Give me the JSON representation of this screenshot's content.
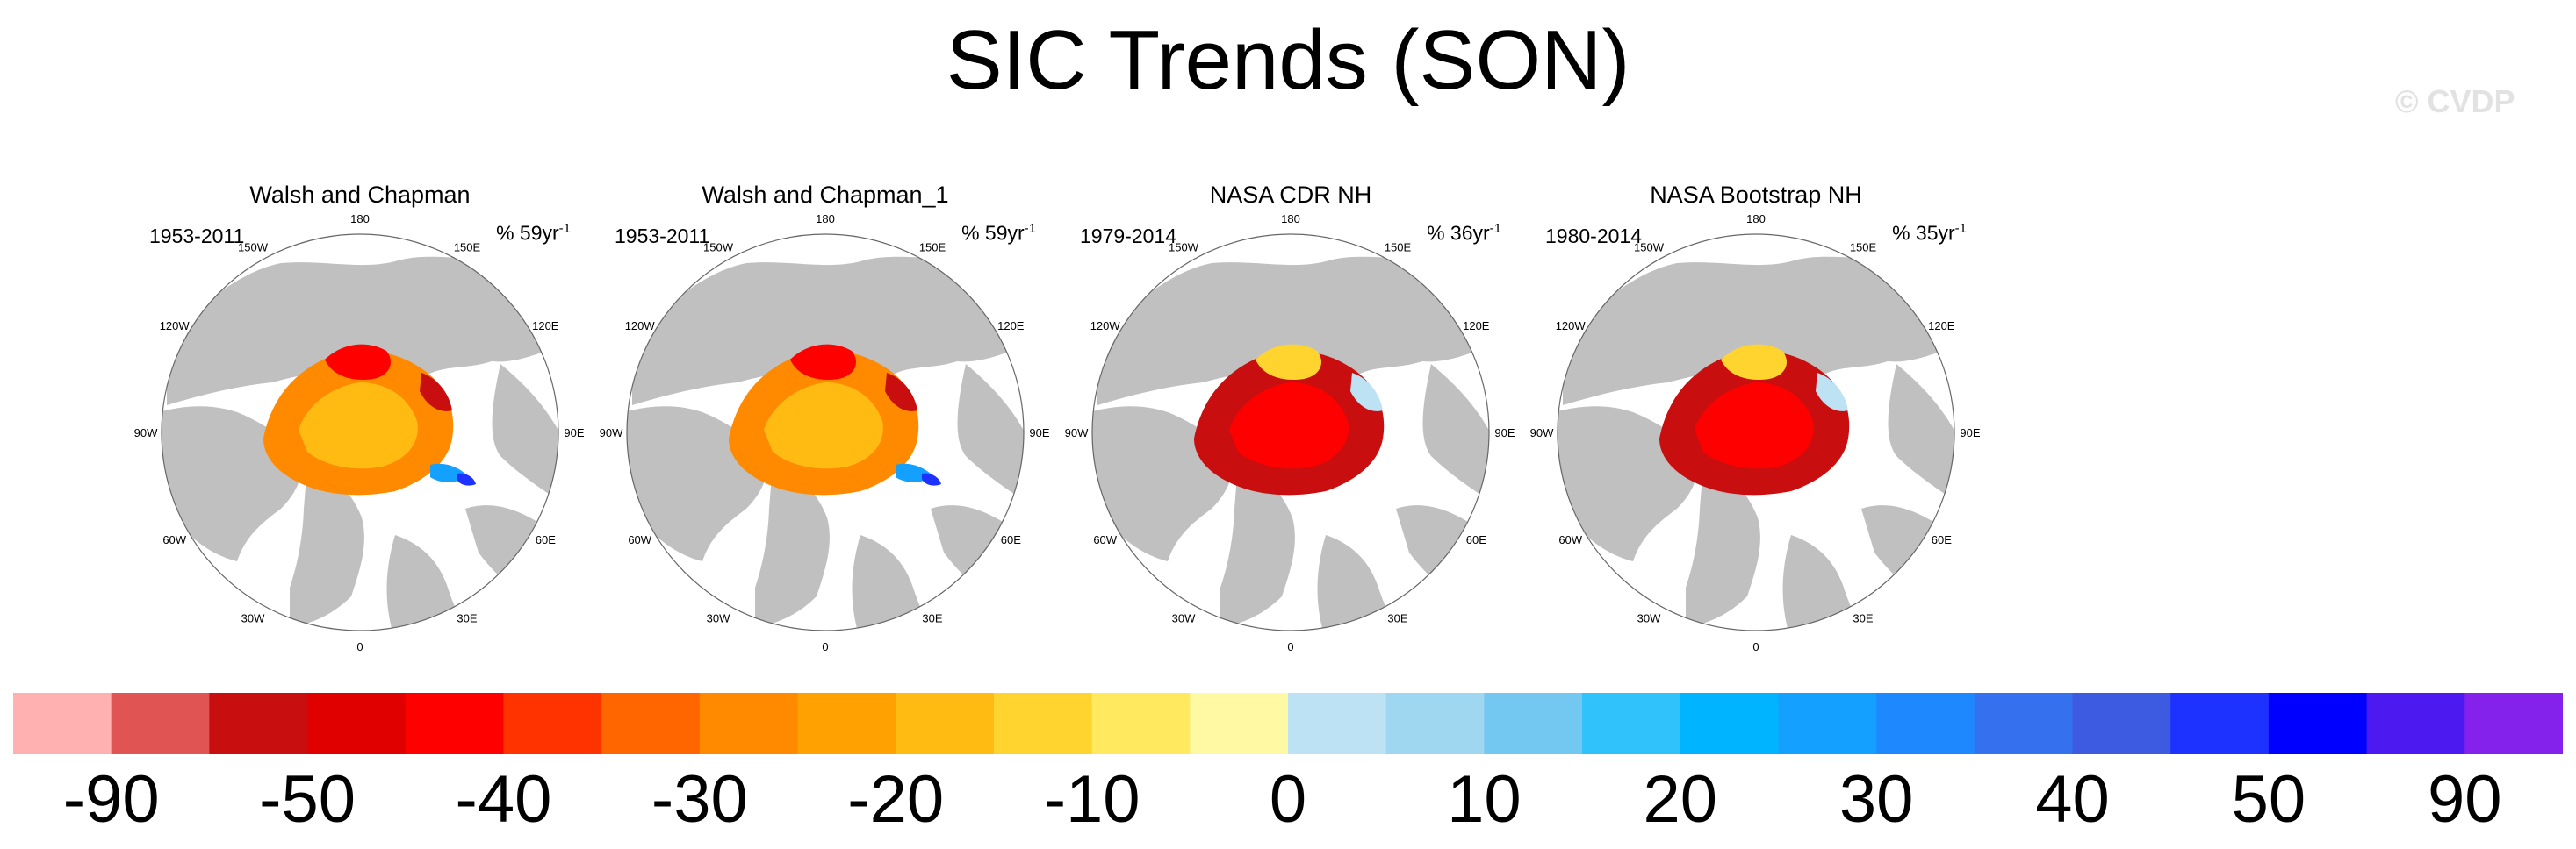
{
  "title": "SIC Trends (SON)",
  "watermark": "© CVDP",
  "colors": {
    "land": "#c0c0c0",
    "ocean": "#ffffff",
    "circle_stroke": "#666666"
  },
  "chart_data": {
    "type": "heatmap",
    "title": "SIC Trends (SON)",
    "projection": "north-polar-stereographic",
    "longitude_labels": [
      "180",
      "150E",
      "120E",
      "90E",
      "60E",
      "30E",
      "0",
      "30W",
      "60W",
      "90W",
      "120W",
      "150W"
    ],
    "panels": [
      {
        "name": "Walsh and Chapman",
        "period": "1953-2011",
        "units_prefix": "% 59yr",
        "units_exp": "-1",
        "dominant_trend": [
          -25,
          -15,
          -40,
          -50,
          30,
          50
        ]
      },
      {
        "name": "Walsh and Chapman_1",
        "period": "1953-2011",
        "units_prefix": "% 59yr",
        "units_exp": "-1",
        "dominant_trend": [
          -25,
          -15,
          -40,
          -50,
          30,
          50
        ]
      },
      {
        "name": "NASA CDR NH",
        "period": "1979-2014",
        "units_prefix": "% 36yr",
        "units_exp": "-1",
        "dominant_trend": [
          -50,
          -40,
          -10,
          5
        ]
      },
      {
        "name": "NASA Bootstrap NH",
        "period": "1980-2014",
        "units_prefix": "% 35yr",
        "units_exp": "-1",
        "dominant_trend": [
          -50,
          -40,
          -10,
          5
        ]
      }
    ],
    "colorbar": {
      "labels": [
        "-90",
        "-50",
        "-40",
        "-30",
        "-20",
        "-10",
        "0",
        "10",
        "20",
        "30",
        "40",
        "50",
        "90"
      ],
      "colors": [
        "#ffb1b1",
        "#e05454",
        "#c80e0e",
        "#e00000",
        "#ff0000",
        "#ff3300",
        "#ff6600",
        "#ff8a00",
        "#ffa100",
        "#ffbb11",
        "#ffd42e",
        "#ffe95e",
        "#fff9a4",
        "#bde2f4",
        "#9fd6f0",
        "#73c8f2",
        "#2fc2fb",
        "#00b4ff",
        "#13a0ff",
        "#1e88ff",
        "#3571ef",
        "#3c5be0",
        "#1e32ff",
        "#0000ff",
        "#4c1af0",
        "#8421ea"
      ]
    }
  }
}
